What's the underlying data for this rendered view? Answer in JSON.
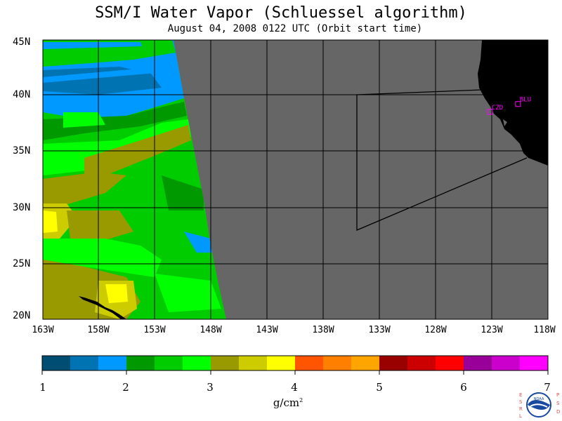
{
  "title": "SSM/I Water Vapor (Schluessel algorithm)",
  "subtitle": "August 04, 2008  0122 UTC  (Orbit start time)",
  "lat_labels": [
    "45N",
    "40N",
    "35N",
    "30N",
    "25N",
    "20N"
  ],
  "lon_labels": [
    "163W",
    "158W",
    "153W",
    "148W",
    "143W",
    "138W",
    "133W",
    "128W",
    "123W",
    "118W"
  ],
  "stations": [
    {
      "label": "CZD",
      "lat": 38.6,
      "lon": -123.2
    },
    {
      "label": "BLU",
      "lat": 39.3,
      "lon": -120.7
    }
  ],
  "colorbar": {
    "ticks": [
      "1",
      "2",
      "3",
      "4",
      "5",
      "6",
      "7"
    ],
    "units": "g/cm",
    "units_sup": "2",
    "colors": [
      "#004d73",
      "#0073b3",
      "#0099ff",
      "#009900",
      "#00cc00",
      "#00ff00",
      "#999900",
      "#cccc00",
      "#ffff00",
      "#ff5500",
      "#ff8000",
      "#ffa500",
      "#990000",
      "#cc0000",
      "#ff0000",
      "#990099",
      "#cc00cc",
      "#ff00ff"
    ]
  },
  "logo": {
    "left_text": "ESRL",
    "right_text": "PSD",
    "center_text": "NOAA"
  },
  "colors": {
    "nodata": "#666666",
    "land": "#000000",
    "station": "#ff00ff",
    "grid": "#000000"
  }
}
